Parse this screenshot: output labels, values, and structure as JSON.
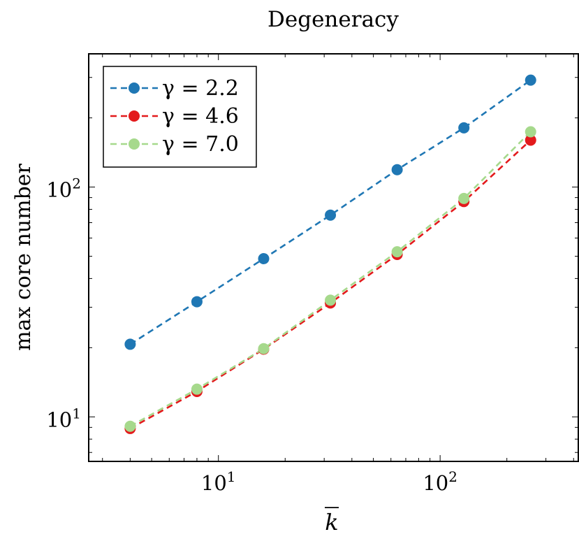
{
  "chart_data": {
    "type": "line",
    "title": "Degeneracy",
    "xlabel": "k̄",
    "ylabel": "max core number",
    "xscale": "log",
    "yscale": "log",
    "xlim": [
      2.6,
      420
    ],
    "ylim": [
      6.4,
      380
    ],
    "x_ticks": [
      {
        "value": 10,
        "base": "10",
        "exp": "1"
      },
      {
        "value": 100,
        "base": "10",
        "exp": "2"
      }
    ],
    "y_ticks": [
      {
        "value": 10,
        "base": "10",
        "exp": "1"
      },
      {
        "value": 100,
        "base": "10",
        "exp": "2"
      }
    ],
    "grid": false,
    "legend_position": "top-left",
    "x": [
      4,
      8,
      16,
      32,
      64,
      128,
      256
    ],
    "series": [
      {
        "name": "γ = 2.2",
        "color": "#1f77b4",
        "values": [
          20.7,
          31.7,
          48.8,
          75.5,
          119,
          181,
          292
        ]
      },
      {
        "name": "γ = 4.6",
        "color": "#e31a1c",
        "values": [
          8.9,
          12.9,
          19.7,
          31.3,
          50.9,
          86.5,
          160
        ]
      },
      {
        "name": "γ = 7.0",
        "color": "#a6d98c",
        "values": [
          9.1,
          13.2,
          19.8,
          32.2,
          52.3,
          89.2,
          174
        ]
      }
    ]
  }
}
